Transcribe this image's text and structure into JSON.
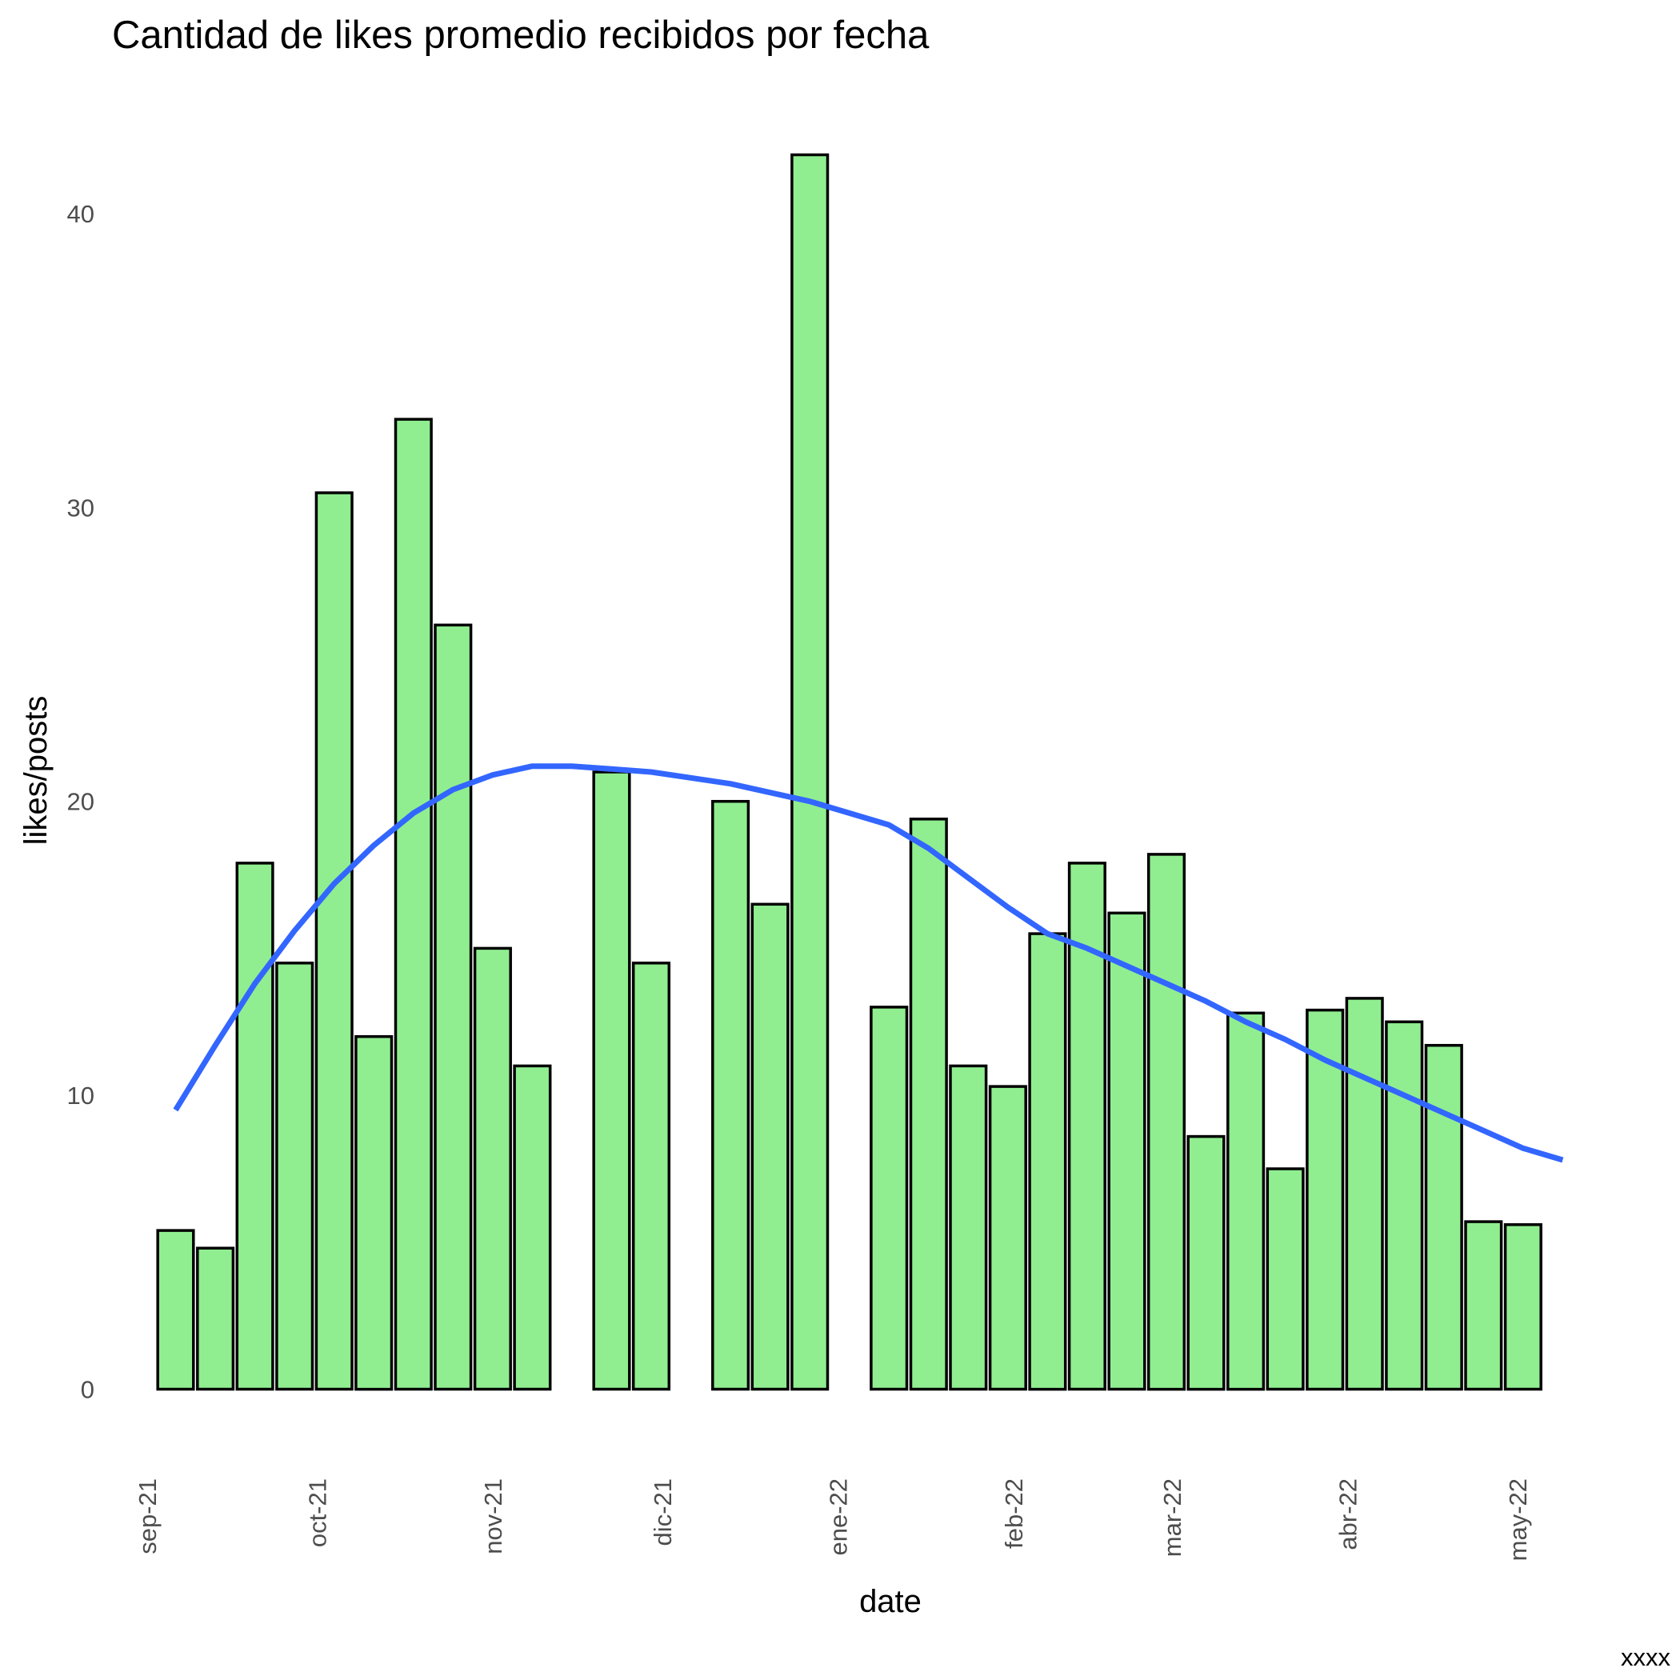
{
  "chart_data": {
    "type": "bar",
    "title": "Cantidad de likes promedio recibidos por fecha",
    "xlabel": "date",
    "ylabel": "likes/posts",
    "caption": "xxxx",
    "ylim": [
      -2,
      44
    ],
    "yticks": [
      0,
      10,
      20,
      30,
      40
    ],
    "xlim": [
      "2021-08-30",
      "2022-05-17"
    ],
    "xticks": [
      {
        "date": "2021-09-01",
        "label": "sep-21"
      },
      {
        "date": "2021-10-01",
        "label": "oct-21"
      },
      {
        "date": "2021-11-01",
        "label": "nov-21"
      },
      {
        "date": "2021-12-01",
        "label": "dic-21"
      },
      {
        "date": "2022-01-01",
        "label": "ene-22"
      },
      {
        "date": "2022-02-01",
        "label": "feb-22"
      },
      {
        "date": "2022-03-01",
        "label": "mar-22"
      },
      {
        "date": "2022-04-01",
        "label": "abr-22"
      },
      {
        "date": "2022-05-01",
        "label": "may-22"
      }
    ],
    "bars": [
      {
        "date": "2021-09-06",
        "value": 5.4
      },
      {
        "date": "2021-09-13",
        "value": 4.8
      },
      {
        "date": "2021-09-20",
        "value": 17.9
      },
      {
        "date": "2021-09-27",
        "value": 14.5
      },
      {
        "date": "2021-10-04",
        "value": 30.5
      },
      {
        "date": "2021-10-11",
        "value": 12.0
      },
      {
        "date": "2021-10-18",
        "value": 33.0
      },
      {
        "date": "2021-10-25",
        "value": 26.0
      },
      {
        "date": "2021-11-01",
        "value": 15.0
      },
      {
        "date": "2021-11-08",
        "value": 11.0
      },
      {
        "date": "2021-11-22",
        "value": 21.0
      },
      {
        "date": "2021-11-29",
        "value": 14.5
      },
      {
        "date": "2021-12-13",
        "value": 20.0
      },
      {
        "date": "2021-12-20",
        "value": 16.5
      },
      {
        "date": "2021-12-27",
        "value": 42.0
      },
      {
        "date": "2022-01-10",
        "value": 13.0
      },
      {
        "date": "2022-01-17",
        "value": 19.4
      },
      {
        "date": "2022-01-24",
        "value": 11.0
      },
      {
        "date": "2022-01-31",
        "value": 10.3
      },
      {
        "date": "2022-02-07",
        "value": 15.5
      },
      {
        "date": "2022-02-14",
        "value": 17.9
      },
      {
        "date": "2022-02-21",
        "value": 16.2
      },
      {
        "date": "2022-02-28",
        "value": 18.2
      },
      {
        "date": "2022-03-07",
        "value": 8.6
      },
      {
        "date": "2022-03-14",
        "value": 12.8
      },
      {
        "date": "2022-03-21",
        "value": 7.5
      },
      {
        "date": "2022-03-28",
        "value": 12.9
      },
      {
        "date": "2022-04-04",
        "value": 13.3
      },
      {
        "date": "2022-04-11",
        "value": 12.5
      },
      {
        "date": "2022-04-18",
        "value": 11.7
      },
      {
        "date": "2022-04-25",
        "value": 5.7
      },
      {
        "date": "2022-05-02",
        "value": 5.6
      }
    ],
    "trend": [
      {
        "date": "2021-09-06",
        "value": 9.5
      },
      {
        "date": "2021-09-13",
        "value": 11.7
      },
      {
        "date": "2021-09-20",
        "value": 13.8
      },
      {
        "date": "2021-09-27",
        "value": 15.6
      },
      {
        "date": "2021-10-04",
        "value": 17.2
      },
      {
        "date": "2021-10-11",
        "value": 18.5
      },
      {
        "date": "2021-10-18",
        "value": 19.6
      },
      {
        "date": "2021-10-25",
        "value": 20.4
      },
      {
        "date": "2021-11-01",
        "value": 20.9
      },
      {
        "date": "2021-11-08",
        "value": 21.2
      },
      {
        "date": "2021-11-15",
        "value": 21.2
      },
      {
        "date": "2021-11-22",
        "value": 21.1
      },
      {
        "date": "2021-11-29",
        "value": 21.0
      },
      {
        "date": "2021-12-06",
        "value": 20.8
      },
      {
        "date": "2021-12-13",
        "value": 20.6
      },
      {
        "date": "2021-12-20",
        "value": 20.3
      },
      {
        "date": "2021-12-27",
        "value": 20.0
      },
      {
        "date": "2022-01-03",
        "value": 19.6
      },
      {
        "date": "2022-01-10",
        "value": 19.2
      },
      {
        "date": "2022-01-17",
        "value": 18.4
      },
      {
        "date": "2022-01-24",
        "value": 17.4
      },
      {
        "date": "2022-01-31",
        "value": 16.4
      },
      {
        "date": "2022-02-07",
        "value": 15.5
      },
      {
        "date": "2022-02-14",
        "value": 15.0
      },
      {
        "date": "2022-02-21",
        "value": 14.4
      },
      {
        "date": "2022-02-28",
        "value": 13.8
      },
      {
        "date": "2022-03-07",
        "value": 13.2
      },
      {
        "date": "2022-03-14",
        "value": 12.5
      },
      {
        "date": "2022-03-21",
        "value": 11.9
      },
      {
        "date": "2022-03-28",
        "value": 11.2
      },
      {
        "date": "2022-04-04",
        "value": 10.6
      },
      {
        "date": "2022-04-11",
        "value": 10.0
      },
      {
        "date": "2022-04-18",
        "value": 9.4
      },
      {
        "date": "2022-04-25",
        "value": 8.8
      },
      {
        "date": "2022-05-02",
        "value": 8.2
      },
      {
        "date": "2022-05-09",
        "value": 7.8
      }
    ],
    "grid": false,
    "legend": "none",
    "colors": {
      "bar_fill": "#90ee90",
      "bar_stroke": "#000000",
      "trend": "#3366ff"
    }
  }
}
